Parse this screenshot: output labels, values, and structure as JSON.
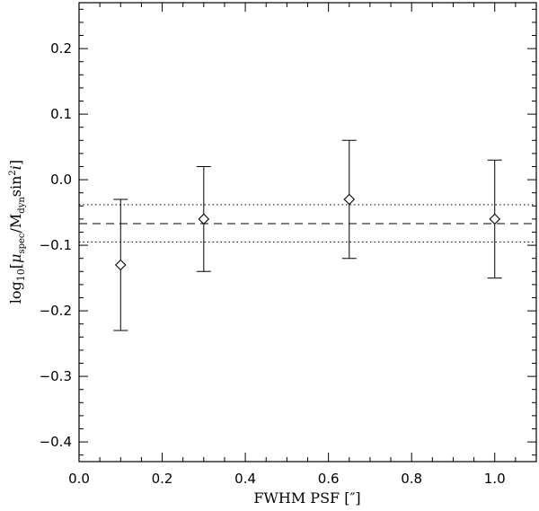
{
  "chart_data": {
    "type": "scatter",
    "title": "",
    "xlabel": "FWHM PSF  [″]",
    "ylabel": {
      "prefix": "log",
      "prefix_sub": "10",
      "open": "[",
      "mu": "μ",
      "mu_sub": "spec",
      "slash": "/M",
      "m_sub": "dyn",
      "sin": "sin",
      "sin_sup": "2",
      "i": "i",
      "close": "]"
    },
    "xlim": [
      0.0,
      1.1
    ],
    "ylim": [
      -0.43,
      0.27
    ],
    "xticks": [
      0.0,
      0.2,
      0.4,
      0.6,
      0.8,
      1.0
    ],
    "xtick_labels": [
      "0.0",
      "0.2",
      "0.4",
      "0.6",
      "0.8",
      "1.0"
    ],
    "yticks": [
      0.2,
      0.1,
      0.0,
      -0.1,
      -0.2,
      -0.3,
      -0.4
    ],
    "ytick_labels": [
      "0.2",
      "0.1",
      "0.0",
      "−0.1",
      "−0.2",
      "−0.3",
      "−0.4"
    ],
    "x_minor_step": 0.05,
    "y_minor_step": 0.02,
    "marker": "diamond",
    "series": [
      {
        "x": [
          0.1,
          0.3,
          0.65,
          1.0
        ],
        "y": [
          -0.13,
          -0.06,
          -0.03,
          -0.06
        ],
        "yerr_low": [
          -0.23,
          -0.14,
          -0.12,
          -0.15
        ],
        "yerr_high": [
          -0.03,
          0.02,
          0.06,
          0.03
        ]
      }
    ],
    "hlines": [
      {
        "y": -0.067,
        "style": "dashed"
      },
      {
        "y": -0.038,
        "style": "dotted"
      },
      {
        "y": -0.095,
        "style": "dotted"
      }
    ],
    "grid": false
  }
}
